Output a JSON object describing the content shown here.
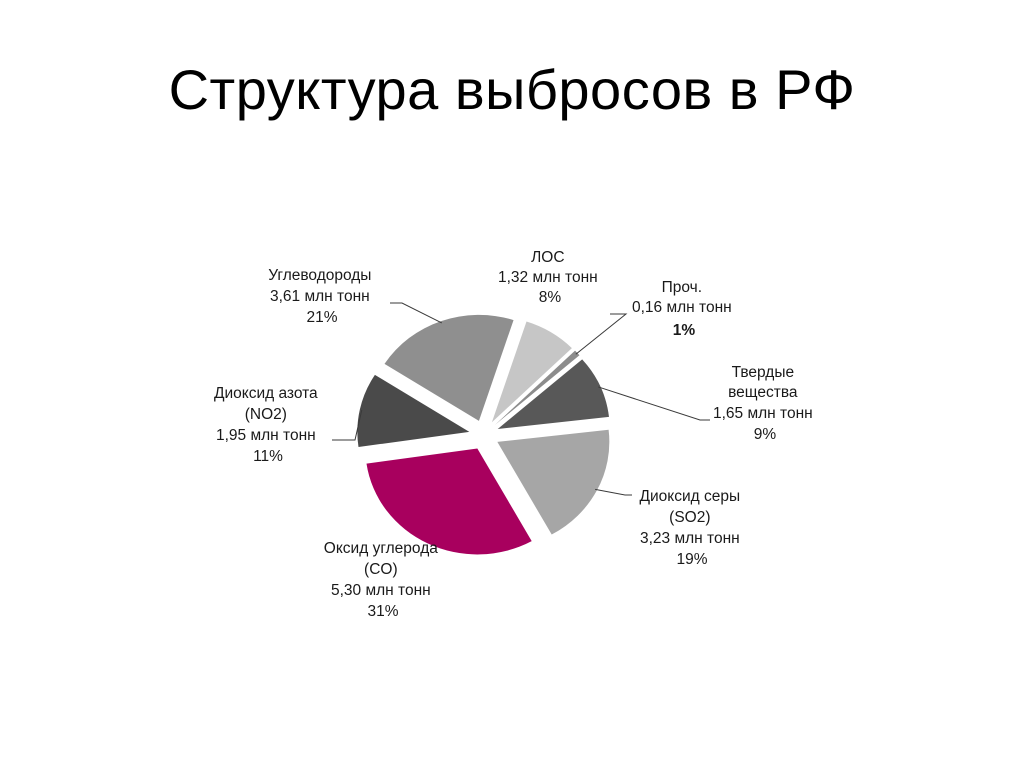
{
  "slide": {
    "title": "Структура выбросов в РФ"
  },
  "chart_data": {
    "type": "pie",
    "title": "",
    "slices": [
      {
        "name": "ЛОС",
        "value": 1.32,
        "value_text": "1,32 млн тонн",
        "percent": 8,
        "percent_text": "8%",
        "color": "#c6c6c6"
      },
      {
        "name": "Проч.",
        "value": 0.16,
        "value_text": "0,16 млн тонн",
        "percent": 1,
        "percent_text": "1%",
        "color": "#8c8c8c"
      },
      {
        "name": "Твердые вещества",
        "name_lines": [
          "Твердые",
          "вещества"
        ],
        "value": 1.65,
        "value_text": "1,65 млн тонн",
        "percent": 9,
        "percent_text": "9%",
        "color": "#585858"
      },
      {
        "name": "Диоксид серы (SO2)",
        "name_lines": [
          "Диоксид серы",
          "(SO2)"
        ],
        "value": 3.23,
        "value_text": "3,23 млн тонн",
        "percent": 19,
        "percent_text": "19%",
        "color": "#a6a6a6"
      },
      {
        "name": "Оксид углерода (CO)",
        "name_lines": [
          "Оксид углерода",
          "(CO)"
        ],
        "value": 5.3,
        "value_text": "5,30 млн тонн",
        "percent": 31,
        "percent_text": "31%",
        "color": "#a8005e"
      },
      {
        "name": "Диоксид азота (NO2)",
        "name_lines": [
          "Диоксид азота",
          "(NO2)"
        ],
        "value": 1.95,
        "value_text": "1,95 млн тонн",
        "percent": 11,
        "percent_text": "11%",
        "color": "#4a4a4a"
      },
      {
        "name": "Углеводороды",
        "name_lines": [
          "Углеводороды"
        ],
        "value": 3.61,
        "value_text": "3,61 млн тонн",
        "percent": 21,
        "percent_text": "21%",
        "color": "#8f8f8f"
      }
    ],
    "legend": "none",
    "labels": "outside-with-leaders"
  }
}
